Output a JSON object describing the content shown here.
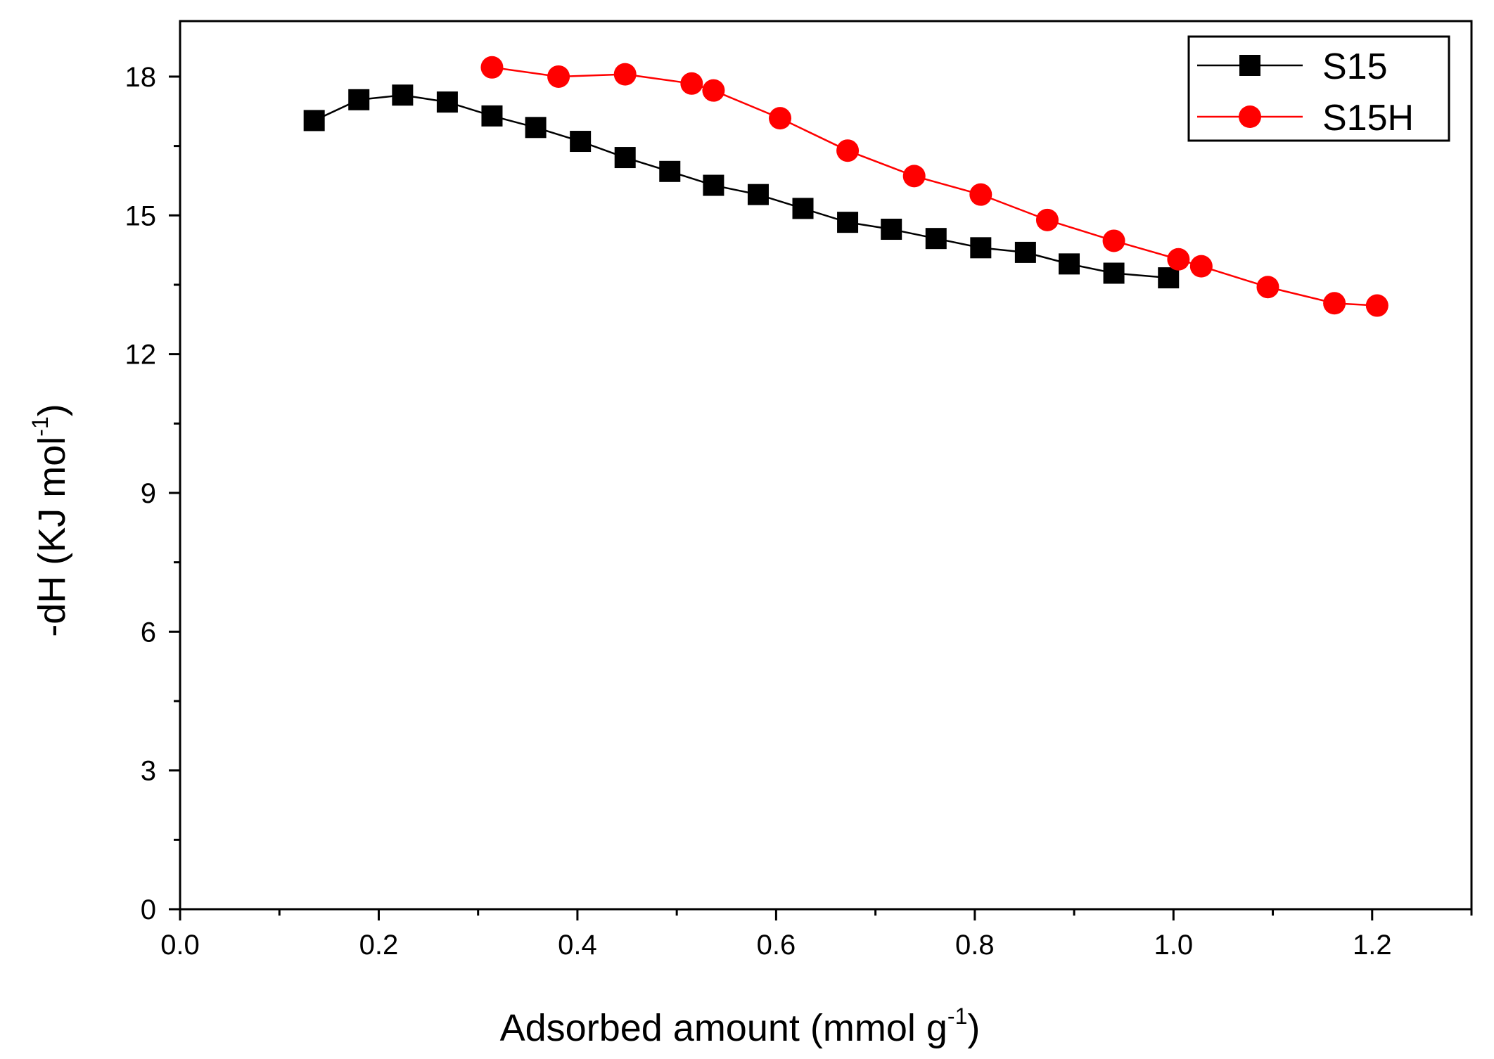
{
  "chart_data": {
    "type": "line",
    "title": "",
    "xlabel": "Adsorbed amount (mmol g",
    "xlabel_sup": "-1",
    "xlabel_close": ")",
    "ylabel": "-dH (KJ mol",
    "ylabel_sup": "-1",
    "ylabel_close": ")",
    "xlim": [
      0,
      1.3
    ],
    "ylim": [
      0,
      19.2
    ],
    "x_ticks": [
      0.0,
      0.2,
      0.4,
      0.6,
      0.8,
      1.0,
      1.2
    ],
    "x_tick_labels": [
      "0.0",
      "0.2",
      "0.4",
      "0.6",
      "0.8",
      "1.0",
      "1.2"
    ],
    "x_minor_ticks": [
      0.1,
      0.3,
      0.5,
      0.7,
      0.9,
      1.1,
      1.3
    ],
    "y_ticks": [
      0,
      3,
      6,
      9,
      12,
      15,
      18
    ],
    "y_tick_labels": [
      "0",
      "3",
      "6",
      "9",
      "12",
      "15",
      "18"
    ],
    "y_minor_ticks": [
      1.5,
      4.5,
      7.5,
      10.5,
      13.5,
      16.5
    ],
    "grid": false,
    "legend_position": "top-right",
    "series": [
      {
        "name": "S15",
        "color": "#000000",
        "marker": "square",
        "x": [
          0.135,
          0.18,
          0.224,
          0.269,
          0.314,
          0.358,
          0.403,
          0.448,
          0.493,
          0.537,
          0.582,
          0.627,
          0.672,
          0.716,
          0.761,
          0.806,
          0.851,
          0.895,
          0.94,
          0.995
        ],
        "y": [
          17.05,
          17.5,
          17.6,
          17.45,
          17.15,
          16.9,
          16.6,
          16.25,
          15.95,
          15.65,
          15.45,
          15.15,
          14.85,
          14.7,
          14.5,
          14.3,
          14.2,
          13.95,
          13.75,
          13.65
        ]
      },
      {
        "name": "S15H",
        "color": "#ff0000",
        "marker": "circle",
        "x": [
          0.314,
          0.381,
          0.448,
          0.515,
          0.537,
          0.604,
          0.672,
          0.739,
          0.806,
          0.873,
          0.94,
          1.005,
          1.028,
          1.095,
          1.162,
          1.205
        ],
        "y": [
          18.2,
          18.0,
          18.05,
          17.85,
          17.7,
          17.1,
          16.4,
          15.85,
          15.45,
          14.9,
          14.45,
          14.05,
          13.9,
          13.45,
          13.1,
          13.05
        ]
      }
    ]
  }
}
